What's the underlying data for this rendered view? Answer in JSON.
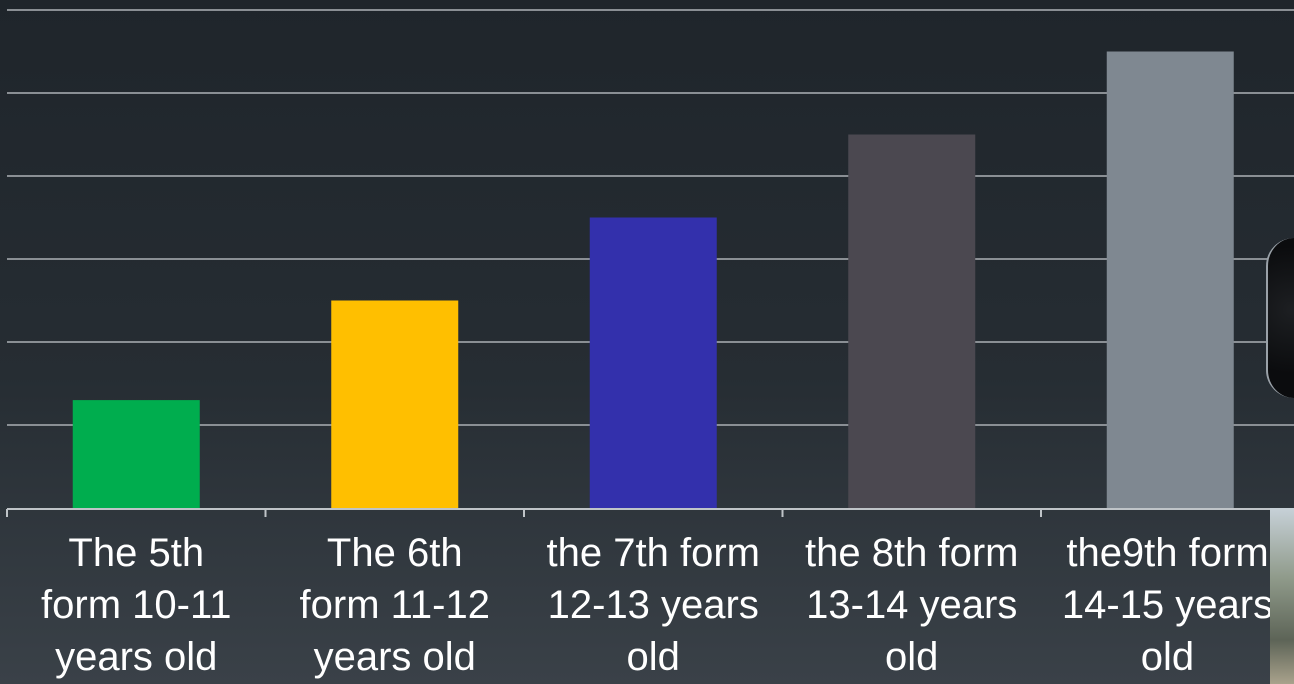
{
  "chart_data": {
    "type": "bar",
    "title": "",
    "xlabel": "",
    "ylabel": "",
    "categories": [
      "The 5th\nform 10-11\nyears old",
      "The 6th\nform 11-12\nyears old",
      "the 7th form\n12-13 years\nold",
      "the 8th form\n13-14 years\nold",
      "the9th form\n14-15 years\nold"
    ],
    "values": [
      1.3,
      2.5,
      3.5,
      4.5,
      5.5
    ],
    "colors": [
      "#00ad4e",
      "#ffbf00",
      "#3330ac",
      "#4b4850",
      "#7f8891"
    ],
    "ylim": [
      0,
      6
    ],
    "grid": true,
    "grid_color": "#8a8f94",
    "axis_color": "#bfc4c8",
    "label_color": "#ffffff"
  },
  "decor": {
    "side_photo_top": "photo",
    "side_photo_bottom": "photo"
  }
}
